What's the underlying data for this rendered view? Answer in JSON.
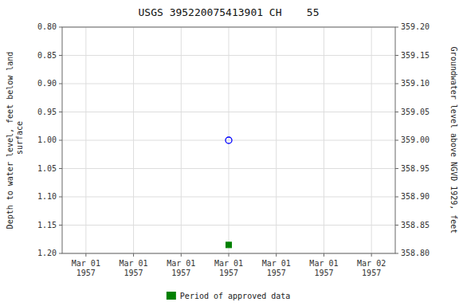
{
  "chart_data": {
    "type": "scatter",
    "title": "USGS 395220075413901 CH    55",
    "y_label": "Depth to water level, feet below land\n surface",
    "y2_label": "Groundwater level above NGVD 1929, feet",
    "categories": [
      "Mar 01\n1957",
      "Mar 01\n1957",
      "Mar 01\n1957",
      "Mar 01\n1957",
      "Mar 01\n1957",
      "Mar 01\n1957",
      "Mar 02\n1957"
    ],
    "series": [
      {
        "color": "blue",
        "marker": "circle-open",
        "values": [
          null,
          null,
          null,
          1.0,
          null,
          null,
          null
        ]
      },
      {
        "name": "Period of approved data",
        "color": "#008000",
        "marker": "square",
        "values": [
          null,
          null,
          null,
          1.185,
          null,
          null,
          null
        ]
      }
    ],
    "ylim": [
      1.2,
      0.8
    ],
    "yticks": [
      {
        "value": 0.8,
        "label": "0.80"
      },
      {
        "value": 0.85,
        "label": "0.85"
      },
      {
        "value": 0.9,
        "label": "0.90"
      },
      {
        "value": 0.95,
        "label": "0.95"
      },
      {
        "value": 1.0,
        "label": "1.00"
      },
      {
        "value": 1.05,
        "label": "1.05"
      },
      {
        "value": 1.1,
        "label": "1.10"
      },
      {
        "value": 1.15,
        "label": "1.15"
      },
      {
        "value": 1.2,
        "label": "1.20"
      }
    ],
    "y2lim": [
      358.8,
      359.2
    ],
    "y2ticks": [
      {
        "value": 359.2,
        "label": "359.20"
      },
      {
        "value": 359.15,
        "label": "359.15"
      },
      {
        "value": 359.1,
        "label": "359.10"
      },
      {
        "value": 359.05,
        "label": "359.05"
      },
      {
        "value": 359.0,
        "label": "359.00"
      },
      {
        "value": 358.95,
        "label": "358.95"
      },
      {
        "value": 358.9,
        "label": "358.90"
      },
      {
        "value": 358.85,
        "label": "358.85"
      },
      {
        "value": 358.8,
        "label": "358.80"
      }
    ],
    "grid": true,
    "legend": "bottom"
  }
}
